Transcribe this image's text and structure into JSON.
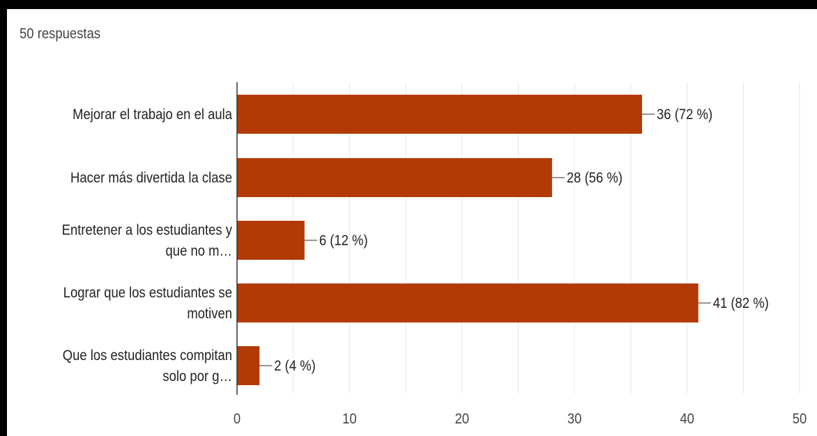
{
  "header": {
    "responses": "50 respuestas"
  },
  "chart_data": {
    "type": "bar",
    "orientation": "horizontal",
    "categories": [
      [
        "Mejorar el trabajo en el aula"
      ],
      [
        "Hacer más divertida la clase"
      ],
      [
        "Entretener a los estudiantes y",
        "que no m…"
      ],
      [
        "Lograr que los estudiantes se",
        "motiven"
      ],
      [
        "Que los estudiantes compitan",
        "solo por g…"
      ]
    ],
    "values": [
      36,
      28,
      6,
      41,
      2
    ],
    "labels": [
      "36 (72 %)",
      "28 (56 %)",
      "6 (12 %)",
      "41 (82 %)",
      "2 (4 %)"
    ],
    "xlim": [
      0,
      50
    ],
    "xticks": [
      "0",
      "10",
      "20",
      "30",
      "40",
      "50"
    ],
    "grid": true,
    "bar_color": "#b23a06",
    "grid_color": "#e6e6e6",
    "text_color": "#222222"
  }
}
